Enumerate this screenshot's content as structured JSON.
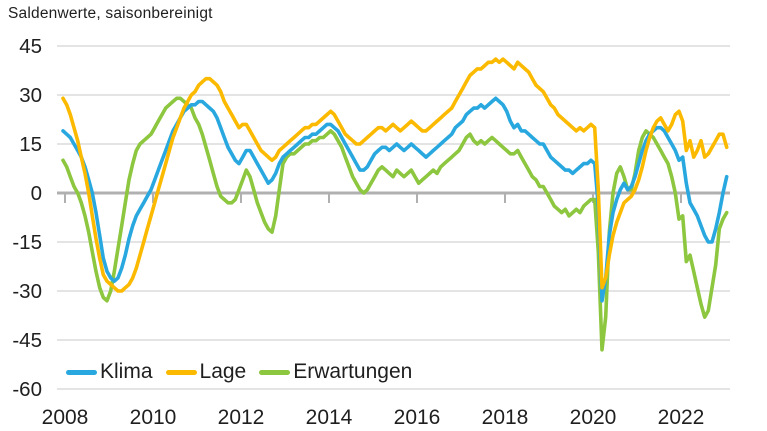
{
  "title": "Saldenwerte, saisonbereinigt",
  "colors": {
    "klima": "#29a8e0",
    "lage": "#fbba00",
    "erwartungen": "#8dc63f",
    "gridline": "#d4d4d4",
    "zero_line": "#b0b0b0",
    "text": "#1f1f1f"
  },
  "legend": [
    {
      "label": "Klima",
      "color": "#29a8e0"
    },
    {
      "label": "Lage",
      "color": "#fbba00"
    },
    {
      "label": "Erwartungen",
      "color": "#8dc63f"
    }
  ],
  "chart_data": {
    "type": "line",
    "title": "Saldenwerte, saisonbereinigt",
    "xlabel": "",
    "ylabel": "",
    "x_start": "2008-01",
    "x_frequency": "monthly",
    "xlim": [
      2007.9,
      2023.35
    ],
    "ylim": [
      -60,
      45
    ],
    "y_ticks": [
      45,
      30,
      15,
      0,
      -15,
      -30,
      -45,
      -60
    ],
    "x_ticks": [
      2008,
      2010,
      2012,
      2014,
      2016,
      2018,
      2020,
      2022
    ],
    "grid": "horizontal",
    "legend_position": "bottom-left-inside",
    "series": [
      {
        "name": "Klima",
        "color": "#29a8e0",
        "values": [
          19,
          18,
          17,
          15,
          13,
          11,
          8,
          4,
          0,
          -6,
          -13,
          -20,
          -24,
          -26,
          -27,
          -26,
          -23,
          -19,
          -14,
          -10,
          -7,
          -5,
          -3,
          -1,
          1,
          4,
          7,
          10,
          13,
          16,
          19,
          21,
          23,
          25,
          26,
          27,
          27,
          28,
          28,
          27,
          26,
          25,
          23,
          20,
          17,
          14,
          12,
          10,
          9,
          11,
          13,
          13,
          11,
          9,
          7,
          5,
          3,
          4,
          6,
          9,
          11,
          12,
          13,
          14,
          15,
          16,
          17,
          17,
          18,
          18,
          19,
          20,
          21,
          21,
          20,
          19,
          17,
          15,
          13,
          11,
          9,
          7,
          7,
          8,
          10,
          12,
          13,
          14,
          14,
          13,
          14,
          15,
          14,
          13,
          14,
          15,
          14,
          13,
          12,
          11,
          12,
          13,
          14,
          15,
          16,
          17,
          18,
          20,
          21,
          22,
          24,
          25,
          26,
          26,
          27,
          26,
          27,
          28,
          29,
          28,
          27,
          25,
          22,
          20,
          21,
          19,
          19,
          18,
          17,
          16,
          15,
          15,
          13,
          11,
          10,
          9,
          8,
          7,
          7,
          6,
          7,
          8,
          9,
          9,
          10,
          9,
          -4,
          -33,
          -26,
          -13,
          -6,
          -2,
          1,
          3,
          1,
          2,
          5,
          9,
          13,
          16,
          18,
          19,
          20,
          20,
          19,
          17,
          15,
          13,
          10,
          11,
          3,
          -3,
          -5,
          -7,
          -10,
          -13,
          -15,
          -15,
          -11,
          -6,
          0,
          5
        ]
      },
      {
        "name": "Lage",
        "color": "#fbba00",
        "values": [
          29,
          27,
          24,
          20,
          16,
          11,
          6,
          0,
          -7,
          -14,
          -20,
          -25,
          -27,
          -28,
          -29,
          -30,
          -30,
          -29,
          -28,
          -26,
          -23,
          -19,
          -15,
          -11,
          -7,
          -3,
          1,
          5,
          9,
          13,
          17,
          20,
          23,
          26,
          28,
          30,
          31,
          33,
          34,
          35,
          35,
          34,
          33,
          31,
          28,
          26,
          24,
          22,
          20,
          21,
          21,
          19,
          17,
          15,
          13,
          12,
          11,
          10,
          11,
          13,
          14,
          15,
          16,
          17,
          18,
          19,
          20,
          20,
          21,
          21,
          22,
          23,
          24,
          25,
          24,
          22,
          20,
          18,
          17,
          16,
          15,
          15,
          16,
          17,
          18,
          19,
          20,
          20,
          19,
          20,
          21,
          20,
          19,
          20,
          21,
          22,
          21,
          20,
          19,
          19,
          20,
          21,
          22,
          23,
          24,
          25,
          26,
          28,
          30,
          32,
          34,
          36,
          37,
          38,
          38,
          39,
          40,
          40,
          41,
          40,
          41,
          40,
          39,
          38,
          40,
          39,
          38,
          37,
          35,
          33,
          32,
          31,
          29,
          27,
          26,
          24,
          23,
          22,
          21,
          20,
          19,
          20,
          19,
          20,
          21,
          20,
          1,
          -29,
          -26,
          -19,
          -13,
          -9,
          -6,
          -3,
          -2,
          -1,
          1,
          4,
          8,
          13,
          17,
          20,
          22,
          23,
          21,
          19,
          21,
          24,
          25,
          22,
          13,
          16,
          11,
          13,
          16,
          11,
          12,
          14,
          16,
          18,
          18,
          14
        ]
      },
      {
        "name": "Erwartungen",
        "color": "#8dc63f",
        "values": [
          10,
          8,
          5,
          2,
          0,
          -3,
          -7,
          -12,
          -18,
          -24,
          -29,
          -32,
          -33,
          -30,
          -24,
          -17,
          -10,
          -3,
          4,
          9,
          13,
          15,
          16,
          17,
          18,
          20,
          22,
          24,
          26,
          27,
          28,
          29,
          29,
          28,
          27,
          26,
          23,
          21,
          18,
          14,
          10,
          6,
          2,
          -1,
          -2,
          -3,
          -3,
          -2,
          1,
          4,
          7,
          5,
          1,
          -3,
          -6,
          -9,
          -11,
          -12,
          -7,
          1,
          9,
          11,
          12,
          12,
          13,
          14,
          15,
          15,
          16,
          16,
          17,
          17,
          18,
          19,
          18,
          16,
          14,
          11,
          8,
          5,
          3,
          1,
          0,
          1,
          3,
          5,
          7,
          8,
          7,
          6,
          5,
          7,
          6,
          5,
          6,
          7,
          5,
          3,
          4,
          5,
          6,
          7,
          6,
          8,
          9,
          10,
          11,
          12,
          13,
          15,
          17,
          18,
          16,
          15,
          16,
          15,
          16,
          17,
          16,
          15,
          14,
          13,
          12,
          12,
          13,
          11,
          9,
          7,
          5,
          4,
          2,
          2,
          0,
          -2,
          -4,
          -5,
          -6,
          -5,
          -7,
          -6,
          -5,
          -6,
          -4,
          -3,
          -2,
          -2,
          -18,
          -48,
          -38,
          -12,
          0,
          6,
          8,
          5,
          1,
          1,
          6,
          13,
          17,
          19,
          18,
          17,
          15,
          13,
          11,
          9,
          5,
          0,
          -8,
          -7,
          -21,
          -19,
          -24,
          -29,
          -34,
          -38,
          -36,
          -29,
          -22,
          -11,
          -8,
          -6
        ]
      }
    ]
  }
}
